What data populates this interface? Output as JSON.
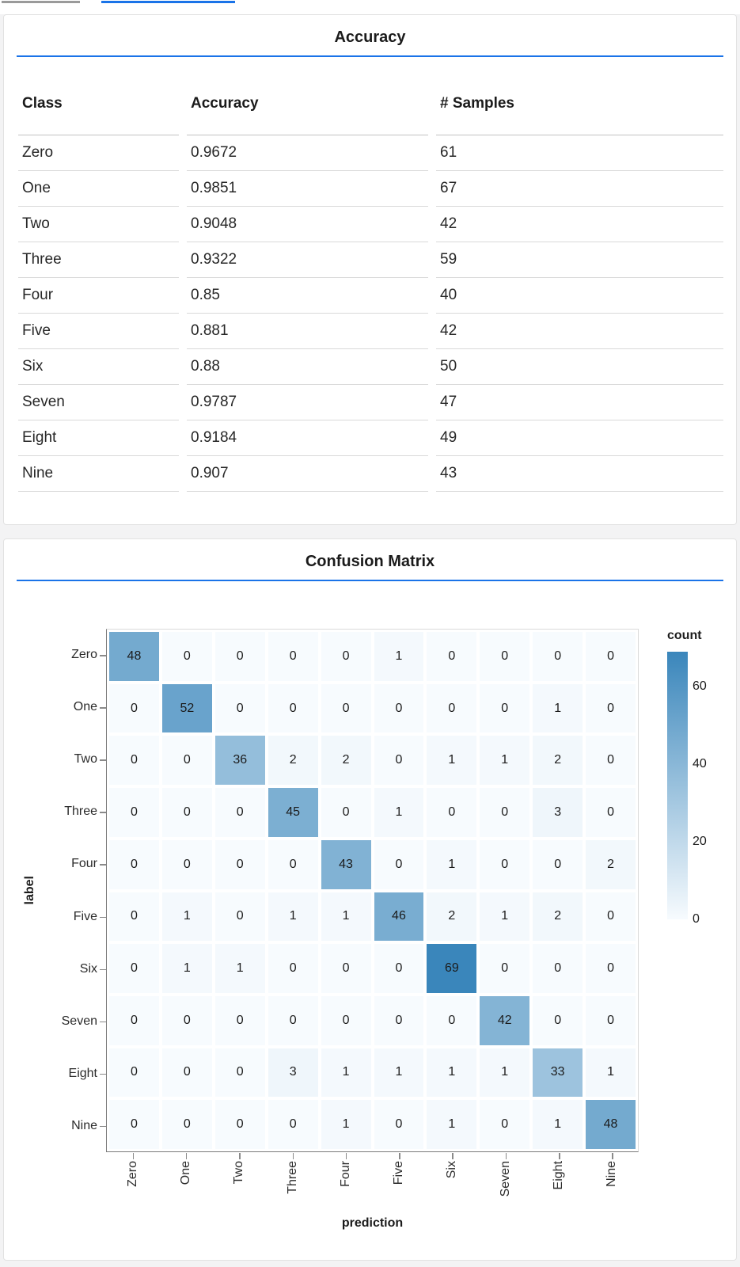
{
  "top_bars": {
    "gray_color": "#9a9a9a",
    "blue_color": "#1a73e8"
  },
  "accent_blue": "#1a73e8",
  "chart_data": [
    {
      "type": "table",
      "title": "Accuracy",
      "columns": [
        "Class",
        "Accuracy",
        "# Samples"
      ],
      "rows": [
        [
          "Zero",
          "0.9672",
          "61"
        ],
        [
          "One",
          "0.9851",
          "67"
        ],
        [
          "Two",
          "0.9048",
          "42"
        ],
        [
          "Three",
          "0.9322",
          "59"
        ],
        [
          "Four",
          "0.85",
          "40"
        ],
        [
          "Five",
          "0.881",
          "42"
        ],
        [
          "Six",
          "0.88",
          "50"
        ],
        [
          "Seven",
          "0.9787",
          "47"
        ],
        [
          "Eight",
          "0.9184",
          "49"
        ],
        [
          "Nine",
          "0.907",
          "43"
        ]
      ]
    },
    {
      "type": "heatmap",
      "title": "Confusion Matrix",
      "xlabel": "prediction",
      "ylabel": "label",
      "x_categories": [
        "Zero",
        "One",
        "Two",
        "Three",
        "Four",
        "Five",
        "Six",
        "Seven",
        "Eight",
        "Nine"
      ],
      "y_categories": [
        "Zero",
        "One",
        "Two",
        "Three",
        "Four",
        "Five",
        "Six",
        "Seven",
        "Eight",
        "Nine"
      ],
      "matrix": [
        [
          48,
          0,
          0,
          0,
          0,
          1,
          0,
          0,
          0,
          0
        ],
        [
          0,
          52,
          0,
          0,
          0,
          0,
          0,
          0,
          1,
          0
        ],
        [
          0,
          0,
          36,
          2,
          2,
          0,
          1,
          1,
          2,
          0
        ],
        [
          0,
          0,
          0,
          45,
          0,
          1,
          0,
          0,
          3,
          0
        ],
        [
          0,
          0,
          0,
          0,
          43,
          0,
          1,
          0,
          0,
          2
        ],
        [
          0,
          1,
          0,
          1,
          1,
          46,
          2,
          1,
          2,
          0
        ],
        [
          0,
          1,
          1,
          0,
          0,
          0,
          69,
          0,
          0,
          0
        ],
        [
          0,
          0,
          0,
          0,
          0,
          0,
          0,
          42,
          0,
          0
        ],
        [
          0,
          0,
          0,
          3,
          1,
          1,
          1,
          1,
          33,
          1
        ],
        [
          0,
          0,
          0,
          0,
          1,
          0,
          1,
          0,
          1,
          48
        ]
      ],
      "legend": {
        "title": "count",
        "ticks": [
          0,
          20,
          40,
          60
        ],
        "domain": [
          0,
          69
        ]
      },
      "color_ramp": {
        "low": "#f7fbfe",
        "high": "#3a86bb"
      },
      "grid": true,
      "legend_position": "right"
    }
  ]
}
